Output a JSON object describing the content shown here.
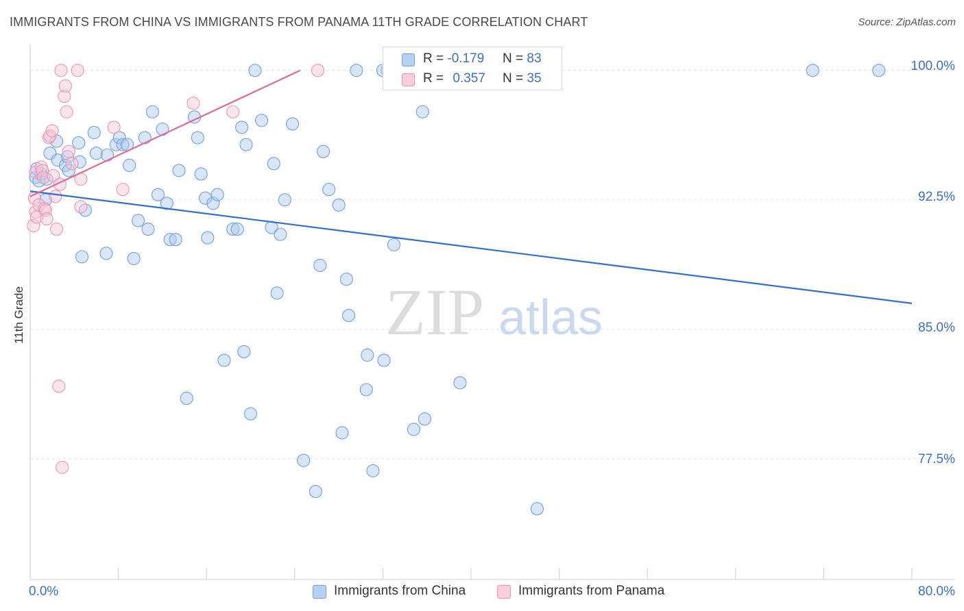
{
  "title": "IMMIGRANTS FROM CHINA VS IMMIGRANTS FROM PANAMA 11TH GRADE CORRELATION CHART",
  "source": "Source: ZipAtlas.com",
  "watermark": {
    "zip": "ZIP",
    "atlas": "atlas"
  },
  "legend": {
    "china": {
      "r_label": "R =",
      "r_value": "-0.179",
      "n_label": "N =",
      "n_value": "83"
    },
    "panama": {
      "r_label": "R =",
      "r_value": "0.357",
      "n_label": "N =",
      "n_value": "35"
    }
  },
  "bottom_legend": {
    "china": "Immigrants from China",
    "panama": "Immigrants from Panama"
  },
  "colors": {
    "china_fill": "#aac8f0",
    "china_stroke": "#6f9fde",
    "china_line": "#2f6fcf",
    "panama_fill": "#f7c6d6",
    "panama_stroke": "#ee93b1",
    "panama_line": "#e06a96",
    "axis_text": "#3a6fc4"
  },
  "chart_data": {
    "type": "scatter",
    "title": "IMMIGRANTS FROM CHINA VS IMMIGRANTS FROM PANAMA 11TH GRADE CORRELATION CHART",
    "xlabel": "",
    "ylabel": "11th Grade",
    "xlim": [
      0,
      80
    ],
    "ylim": [
      70.5,
      101.5
    ],
    "x_tick_labels": [
      "0.0%",
      "80.0%"
    ],
    "y_ticks": [
      77.5,
      85.0,
      92.5,
      100.0
    ],
    "y_tick_labels": [
      "77.5%",
      "85.0%",
      "92.5%",
      "100.0%"
    ],
    "grid": true,
    "series": [
      {
        "name": "Immigrants from China",
        "points": [
          [
            0.5,
            93.8
          ],
          [
            0.8,
            93.6
          ],
          [
            1.0,
            94.0
          ],
          [
            1.4,
            92.5
          ],
          [
            1.8,
            95.2
          ],
          [
            2.4,
            95.9
          ],
          [
            2.5,
            94.8
          ],
          [
            3.2,
            94.5
          ],
          [
            3.4,
            95.0
          ],
          [
            3.5,
            94.2
          ],
          [
            4.4,
            95.8
          ],
          [
            4.5,
            94.7
          ],
          [
            5.0,
            91.9
          ],
          [
            5.8,
            96.4
          ],
          [
            6.0,
            95.2
          ],
          [
            7.0,
            95.1
          ],
          [
            7.8,
            95.7
          ],
          [
            8.1,
            96.1
          ],
          [
            8.4,
            95.7
          ],
          [
            8.8,
            95.7
          ],
          [
            9.0,
            94.5
          ],
          [
            9.8,
            91.3
          ],
          [
            10.4,
            96.1
          ],
          [
            10.7,
            90.8
          ],
          [
            11.1,
            97.6
          ],
          [
            11.6,
            92.8
          ],
          [
            12.0,
            96.6
          ],
          [
            12.4,
            92.3
          ],
          [
            12.7,
            90.2
          ],
          [
            13.2,
            90.2
          ],
          [
            13.5,
            94.2
          ],
          [
            14.2,
            81.0
          ],
          [
            14.9,
            97.3
          ],
          [
            15.2,
            96.1
          ],
          [
            15.5,
            94.0
          ],
          [
            15.9,
            92.6
          ],
          [
            16.1,
            90.3
          ],
          [
            16.6,
            92.3
          ],
          [
            17.0,
            92.8
          ],
          [
            17.6,
            83.2
          ],
          [
            18.4,
            90.8
          ],
          [
            18.8,
            90.8
          ],
          [
            19.2,
            96.7
          ],
          [
            19.4,
            83.7
          ],
          [
            19.6,
            95.7
          ],
          [
            20.0,
            80.1
          ],
          [
            20.4,
            100.0
          ],
          [
            21.0,
            97.1
          ],
          [
            21.9,
            90.9
          ],
          [
            22.1,
            94.6
          ],
          [
            22.4,
            87.1
          ],
          [
            22.7,
            90.5
          ],
          [
            23.1,
            92.5
          ],
          [
            23.8,
            96.9
          ],
          [
            24.8,
            77.4
          ],
          [
            25.9,
            75.6
          ],
          [
            26.3,
            88.7
          ],
          [
            26.6,
            95.3
          ],
          [
            27.1,
            93.1
          ],
          [
            28.0,
            92.2
          ],
          [
            28.3,
            79.0
          ],
          [
            28.7,
            87.9
          ],
          [
            28.9,
            85.8
          ],
          [
            29.6,
            100.0
          ],
          [
            30.5,
            81.5
          ],
          [
            30.6,
            83.5
          ],
          [
            31.1,
            76.8
          ],
          [
            32.1,
            83.2
          ],
          [
            32.4,
            100.0
          ],
          [
            33.0,
            89.9
          ],
          [
            34.8,
            79.2
          ],
          [
            35.6,
            97.6
          ],
          [
            35.8,
            79.8
          ],
          [
            39.0,
            81.9
          ],
          [
            46.0,
            74.6
          ],
          [
            71.0,
            100.0
          ],
          [
            77.0,
            100.0
          ],
          [
            32.0,
            100.0
          ],
          [
            0.6,
            94.3
          ],
          [
            1.5,
            93.7
          ],
          [
            6.9,
            89.4
          ],
          [
            9.4,
            89.1
          ],
          [
            4.7,
            89.2
          ]
        ]
      },
      {
        "name": "Immigrants from Panama",
        "points": [
          [
            0.3,
            91.0
          ],
          [
            0.4,
            92.6
          ],
          [
            0.5,
            91.8
          ],
          [
            0.5,
            94.1
          ],
          [
            0.6,
            91.5
          ],
          [
            0.8,
            92.2
          ],
          [
            1.0,
            94.4
          ],
          [
            1.1,
            94.2
          ],
          [
            1.2,
            93.8
          ],
          [
            1.3,
            92.0
          ],
          [
            1.4,
            91.9
          ],
          [
            1.5,
            91.4
          ],
          [
            1.7,
            96.1
          ],
          [
            1.8,
            96.2
          ],
          [
            2.0,
            96.5
          ],
          [
            2.1,
            93.9
          ],
          [
            2.3,
            92.7
          ],
          [
            2.4,
            90.8
          ],
          [
            2.6,
            81.7
          ],
          [
            2.7,
            93.4
          ],
          [
            2.8,
            100.0
          ],
          [
            2.9,
            77.0
          ],
          [
            3.1,
            98.5
          ],
          [
            3.2,
            99.1
          ],
          [
            3.3,
            97.6
          ],
          [
            3.5,
            95.3
          ],
          [
            3.8,
            94.6
          ],
          [
            4.3,
            100.0
          ],
          [
            4.6,
            93.7
          ],
          [
            4.6,
            92.1
          ],
          [
            7.6,
            96.7
          ],
          [
            8.4,
            93.1
          ],
          [
            14.8,
            98.1
          ],
          [
            18.4,
            97.6
          ],
          [
            26.1,
            100.0
          ]
        ]
      }
    ],
    "trend_lines": [
      {
        "name": "Immigrants from China",
        "from": [
          0,
          93.0
        ],
        "to": [
          80,
          86.5
        ]
      },
      {
        "name": "Immigrants from Panama",
        "from": [
          0,
          92.7
        ],
        "to": [
          24.5,
          100.0
        ]
      }
    ]
  }
}
